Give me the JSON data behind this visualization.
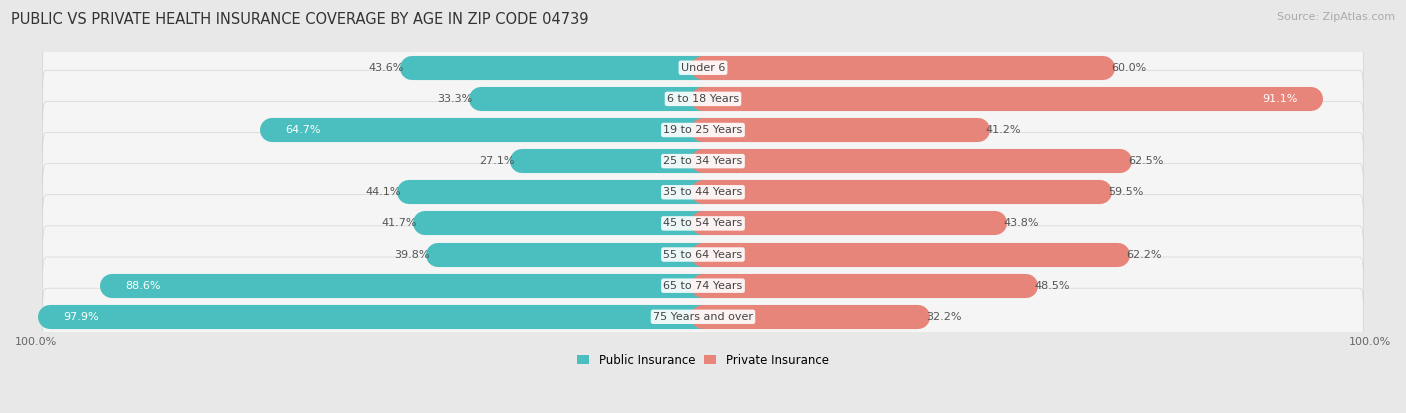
{
  "title": "PUBLIC VS PRIVATE HEALTH INSURANCE COVERAGE BY AGE IN ZIP CODE 04739",
  "source": "Source: ZipAtlas.com",
  "categories": [
    "Under 6",
    "6 to 18 Years",
    "19 to 25 Years",
    "25 to 34 Years",
    "35 to 44 Years",
    "45 to 54 Years",
    "55 to 64 Years",
    "65 to 74 Years",
    "75 Years and over"
  ],
  "public_values": [
    43.6,
    33.3,
    64.7,
    27.1,
    44.1,
    41.7,
    39.8,
    88.6,
    97.9
  ],
  "private_values": [
    60.0,
    91.1,
    41.2,
    62.5,
    59.5,
    43.8,
    62.2,
    48.5,
    32.2
  ],
  "public_color": "#4bbfbf",
  "private_color": "#e8857a",
  "public_color_light": "#a8dede",
  "private_color_light": "#f0b8b0",
  "bg_color": "#e8e8e8",
  "row_bg_color": "#f5f5f5",
  "bar_height": 0.62,
  "xlim": 100,
  "title_fontsize": 10.5,
  "source_fontsize": 8,
  "label_fontsize": 8,
  "tick_fontsize": 8,
  "legend_fontsize": 8.5,
  "inside_label_threshold_pub": 55,
  "inside_label_threshold_priv": 65
}
